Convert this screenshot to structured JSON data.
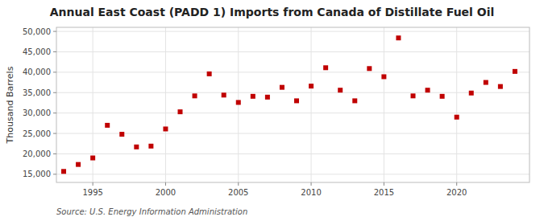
{
  "chart_data": {
    "type": "scatter",
    "title": "Annual East Coast (PADD 1) Imports from Canada of Distillate Fuel Oil",
    "y_label": "Thousand Barrels",
    "annotations": [
      "Source: U.S. Energy Information Administration"
    ],
    "x": [
      1993,
      1994,
      1995,
      1996,
      1997,
      1998,
      1999,
      2000,
      2001,
      2002,
      2003,
      2004,
      2005,
      2006,
      2007,
      2008,
      2009,
      2010,
      2011,
      2012,
      2013,
      2014,
      2015,
      2016,
      2017,
      2018,
      2019,
      2020,
      2021,
      2022,
      2023,
      2024
    ],
    "values": [
      15700,
      17400,
      19000,
      27000,
      24800,
      21700,
      21900,
      26100,
      30300,
      34200,
      39600,
      34400,
      32600,
      34100,
      33900,
      36300,
      33000,
      36600,
      41100,
      35600,
      33000,
      40900,
      38900,
      48400,
      34200,
      35600,
      34100,
      29000,
      34900,
      37500,
      36500,
      40200
    ],
    "color": "#c00000",
    "marker": "square",
    "grid": true,
    "xlim": [
      1992.5,
      2025
    ],
    "xticks": [
      1995,
      2000,
      2005,
      2010,
      2015,
      2020
    ],
    "ylim": [
      13000,
      51000
    ],
    "yticks": [
      {
        "value": 15000,
        "label": "15,000"
      },
      {
        "value": 20000,
        "label": "20,000"
      },
      {
        "value": 25000,
        "label": "25,000"
      },
      {
        "value": 30000,
        "label": "30,000"
      },
      {
        "value": 35000,
        "label": "35,000"
      },
      {
        "value": 40000,
        "label": "40,000"
      },
      {
        "value": 45000,
        "label": "45,000"
      },
      {
        "value": 50000,
        "label": "50,000"
      }
    ]
  }
}
